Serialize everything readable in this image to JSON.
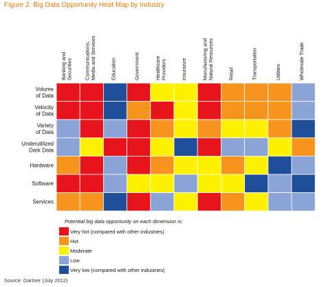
{
  "figure_title": "Figure 2. Big Data Opportunity Heat Map by Industry",
  "source": "Source: Gartner (July 2012)",
  "colors": {
    "very_hot": "#e8141c",
    "hot": "#f7941d",
    "moderate": "#fff200",
    "low": "#8aa4d8",
    "very_low": "#1f4e9a"
  },
  "chart_data": {
    "type": "heatmap",
    "columns": [
      "Banking and Securities",
      "Communications, Media and Services",
      "Education",
      "Government",
      "Healthcare Providers",
      "Insurance",
      "Manufacturing and Natural Resources",
      "Retail",
      "Transportation",
      "Utilities",
      "Wholesale Trade"
    ],
    "rows": [
      "Volume of Data",
      "Velocity of Data",
      "Variety of Data",
      "Underutilized Dark Data",
      "Hardware",
      "Software",
      "Services"
    ],
    "values": [
      [
        "very_hot",
        "very_hot",
        "very_low",
        "very_hot",
        "moderate",
        "moderate",
        "very_hot",
        "hot",
        "hot",
        "hot",
        "low"
      ],
      [
        "very_hot",
        "very_hot",
        "very_low",
        "hot",
        "very_hot",
        "moderate",
        "very_hot",
        "hot",
        "hot",
        "hot",
        "low"
      ],
      [
        "low",
        "very_hot",
        "low",
        "very_hot",
        "hot",
        "moderate",
        "hot",
        "moderate",
        "moderate",
        "hot",
        "very_low"
      ],
      [
        "low",
        "moderate",
        "very_hot",
        "very_hot",
        "moderate",
        "very_low",
        "very_hot",
        "low",
        "low",
        "moderate",
        "hot"
      ],
      [
        "hot",
        "very_hot",
        "low",
        "very_hot",
        "hot",
        "moderate",
        "moderate",
        "hot",
        "moderate",
        "very_low",
        "low"
      ],
      [
        "very_hot",
        "very_hot",
        "low",
        "moderate",
        "moderate",
        "low",
        "moderate",
        "moderate",
        "very_low",
        "low",
        "very_low"
      ],
      [
        "hot",
        "hot",
        "very_low",
        "very_hot",
        "low",
        "moderate",
        "very_hot",
        "hot",
        "moderate",
        "low",
        "low"
      ]
    ],
    "legend": {
      "title": "Potential big data opportunity on each dimension is:",
      "items": [
        {
          "key": "very_hot",
          "label": "Very hot (compared with other industries)"
        },
        {
          "key": "hot",
          "label": "Hot"
        },
        {
          "key": "moderate",
          "label": "Moderate"
        },
        {
          "key": "low",
          "label": "Low"
        },
        {
          "key": "very_low",
          "label": "Very low (compared with other industries)"
        }
      ]
    }
  }
}
